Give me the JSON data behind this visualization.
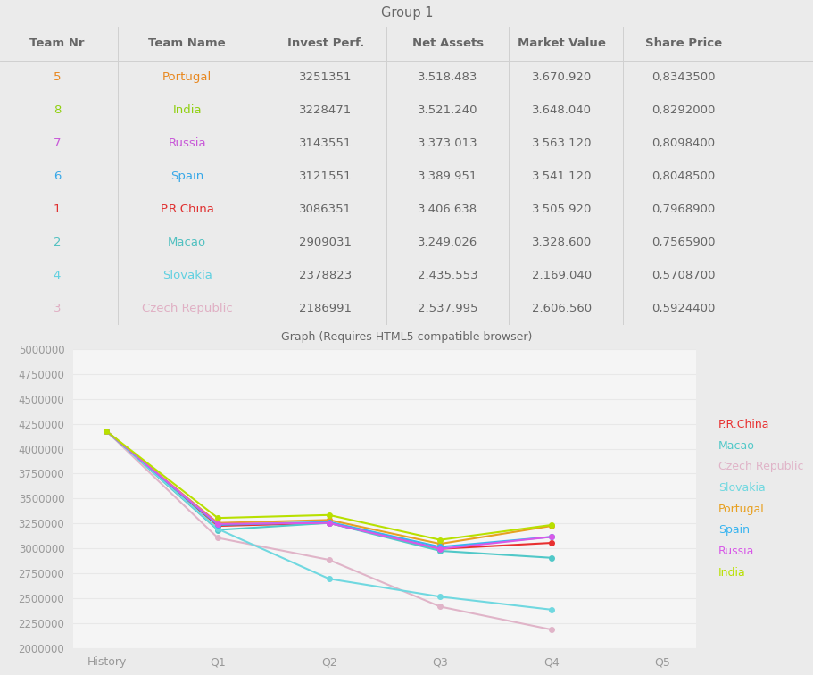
{
  "title": "Group 1",
  "table_header": [
    "Team Nr",
    "Team Name",
    "Invest Perf.",
    "Net Assets",
    "Market Value",
    "Share Price"
  ],
  "table_rows": [
    [
      5,
      "Portugal",
      "3251351",
      "3.518.483",
      "3.670.920",
      "0,8343500"
    ],
    [
      8,
      "India",
      "3228471",
      "3.521.240",
      "3.648.040",
      "0,8292000"
    ],
    [
      7,
      "Russia",
      "3143551",
      "3.373.013",
      "3.563.120",
      "0,8098400"
    ],
    [
      6,
      "Spain",
      "3121551",
      "3.389.951",
      "3.541.120",
      "0,8048500"
    ],
    [
      1,
      "P.R.China",
      "3086351",
      "3.406.638",
      "3.505.920",
      "0,7968900"
    ],
    [
      2,
      "Macao",
      "2909031",
      "3.249.026",
      "3.328.600",
      "0,7565900"
    ],
    [
      4,
      "Slovakia",
      "2378823",
      "2.435.553",
      "2.169.040",
      "0,5708700"
    ],
    [
      3,
      "Czech Republic",
      "2186991",
      "2.537.995",
      "2.606.560",
      "0,5924400"
    ]
  ],
  "graph_label": "Graph (Requires HTML5 compatible browser)",
  "x_labels": [
    "History",
    "Q1",
    "Q2",
    "Q3",
    "Q4",
    "Q5"
  ],
  "series_order": [
    "P.R.China",
    "Macao",
    "Czech Republic",
    "Slovakia",
    "Portugal",
    "Spain",
    "Russia",
    "India"
  ],
  "series": {
    "P.R.China": {
      "color": "#e83030",
      "data": [
        4175000,
        3225000,
        3255000,
        2995000,
        3055000
      ]
    },
    "Macao": {
      "color": "#50c8c8",
      "data": [
        4175000,
        3185000,
        3255000,
        2975000,
        2905000
      ]
    },
    "Czech Republic": {
      "color": "#e0b4c8",
      "data": [
        4175000,
        3105000,
        2885000,
        2415000,
        2185000
      ]
    },
    "Slovakia": {
      "color": "#70d8e0",
      "data": [
        4175000,
        3195000,
        2695000,
        2515000,
        2385000
      ]
    },
    "Portugal": {
      "color": "#e8a020",
      "data": [
        4175000,
        3255000,
        3285000,
        3045000,
        3225000
      ]
    },
    "Spain": {
      "color": "#38b4f0",
      "data": [
        4175000,
        3235000,
        3265000,
        3015000,
        3115000
      ]
    },
    "Russia": {
      "color": "#d858e8",
      "data": [
        4175000,
        3245000,
        3255000,
        2995000,
        3115000
      ]
    },
    "India": {
      "color": "#b8e000",
      "data": [
        4175000,
        3305000,
        3335000,
        3085000,
        3235000
      ]
    }
  },
  "ylim": [
    2000000,
    5000000
  ],
  "yticks": [
    2000000,
    2250000,
    2500000,
    2750000,
    3000000,
    3250000,
    3500000,
    3750000,
    4000000,
    4250000,
    4500000,
    4750000,
    5000000
  ],
  "name_color_map": {
    "Portugal": "#e88820",
    "India": "#90d010",
    "Russia": "#c858d8",
    "Spain": "#38a8e8",
    "P.R.China": "#e03030",
    "Macao": "#50c0c0",
    "Slovakia": "#60d0e0",
    "Czech Republic": "#e0b0c4"
  },
  "legend_colors": {
    "P.R.China": "#e83030",
    "Macao": "#50c8c8",
    "Czech Republic": "#e0b4c8",
    "Slovakia": "#70d8e0",
    "Portugal": "#e8a020",
    "Spain": "#38b4f0",
    "Russia": "#d858e8",
    "India": "#b8e000"
  },
  "bg_outer": "#ebebeb",
  "bg_white": "#ffffff",
  "bg_header": "#e8e8e8",
  "bg_sep": "#e0e0e0",
  "bg_chart": "#f5f5f5",
  "col_border": "#d0d0d0",
  "text_main": "#666666",
  "text_tick": "#999999"
}
